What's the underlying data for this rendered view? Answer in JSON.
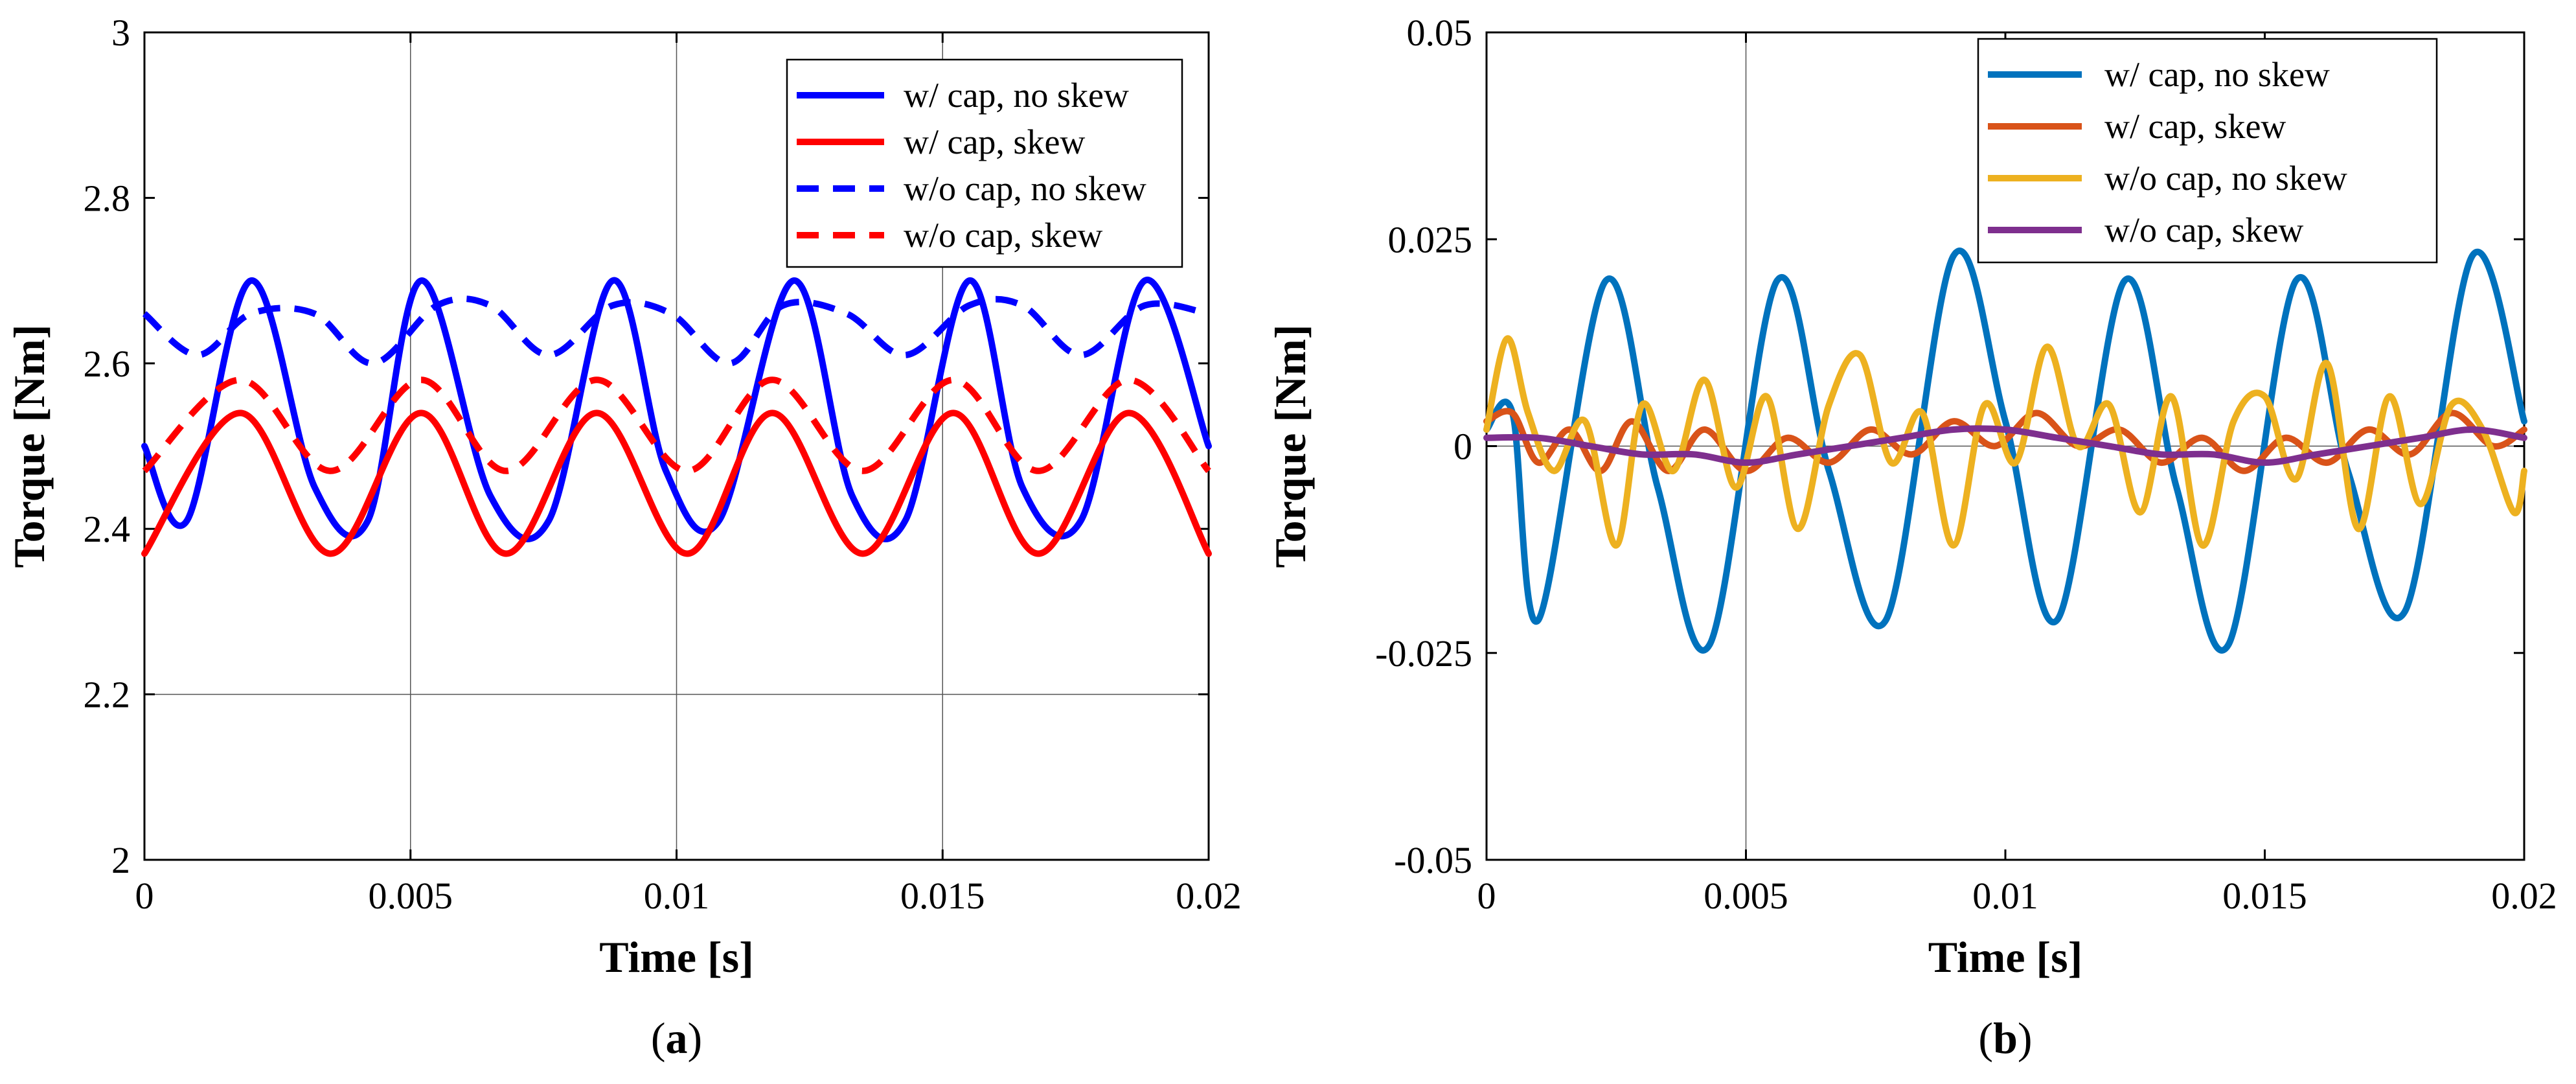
{
  "chart_data": [
    {
      "type": "line",
      "panel_label": "(a)",
      "panel_letter": "a",
      "xlabel": "Time [s]",
      "ylabel": "Torque [Nm]",
      "xlim": [
        0,
        0.02
      ],
      "ylim": [
        2,
        3
      ],
      "xticks": [
        0,
        0.005,
        0.01,
        0.015,
        0.02
      ],
      "xtick_labels": [
        "0",
        "0.005",
        "0.01",
        "0.015",
        "0.02"
      ],
      "yticks": [
        2,
        2.2,
        2.4,
        2.6,
        2.8,
        3
      ],
      "ytick_labels": [
        "2",
        "2.2",
        "2.4",
        "2.6",
        "2.8",
        "3"
      ],
      "legend_position": "top-right",
      "series": [
        {
          "name": "w/ cap, no skew",
          "color": "#0000ff",
          "dash": "solid",
          "x": [
            0,
            0.0008,
            0.002,
            0.0032,
            0.0042,
            0.0052,
            0.0065,
            0.0076,
            0.0088,
            0.0098,
            0.0108,
            0.0122,
            0.0133,
            0.0143,
            0.0155,
            0.0165,
            0.0176,
            0.0188,
            0.02
          ],
          "y": [
            2.5,
            2.41,
            2.7,
            2.45,
            2.41,
            2.7,
            2.44,
            2.41,
            2.7,
            2.47,
            2.41,
            2.7,
            2.44,
            2.41,
            2.7,
            2.45,
            2.41,
            2.7,
            2.5
          ]
        },
        {
          "name": "w/ cap, skew",
          "color": "#ff0000",
          "dash": "solid",
          "x": [
            0,
            0.0018,
            0.0035,
            0.0052,
            0.0068,
            0.0085,
            0.0102,
            0.0118,
            0.0135,
            0.0152,
            0.0168,
            0.0185,
            0.02
          ],
          "y": [
            2.37,
            2.54,
            2.37,
            2.54,
            2.37,
            2.54,
            2.37,
            2.54,
            2.37,
            2.54,
            2.37,
            2.54,
            2.37
          ]
        },
        {
          "name": "w/o cap, no skew",
          "color": "#0000ff",
          "dash": "dashed",
          "x": [
            0,
            0.001,
            0.002,
            0.0032,
            0.0043,
            0.0055,
            0.0065,
            0.0076,
            0.0088,
            0.0099,
            0.011,
            0.012,
            0.0132,
            0.0143,
            0.0155,
            0.0165,
            0.0176,
            0.0188,
            0.02
          ],
          "y": [
            2.66,
            2.61,
            2.66,
            2.66,
            2.6,
            2.67,
            2.67,
            2.61,
            2.67,
            2.66,
            2.6,
            2.67,
            2.66,
            2.61,
            2.67,
            2.67,
            2.61,
            2.67,
            2.66
          ]
        },
        {
          "name": "w/o cap, skew",
          "color": "#ff0000",
          "dash": "dashed",
          "x": [
            0,
            0.0018,
            0.0035,
            0.0052,
            0.0068,
            0.0085,
            0.0102,
            0.0118,
            0.0135,
            0.0152,
            0.0168,
            0.0185,
            0.02
          ],
          "y": [
            2.47,
            2.58,
            2.47,
            2.58,
            2.47,
            2.58,
            2.47,
            2.58,
            2.47,
            2.58,
            2.47,
            2.58,
            2.47
          ]
        }
      ]
    },
    {
      "type": "line",
      "panel_label": "(b)",
      "panel_letter": "b",
      "xlabel": "Time [s]",
      "ylabel": "Torque [Nm]",
      "xlim": [
        0,
        0.02
      ],
      "ylim": [
        -0.05,
        0.05
      ],
      "xticks": [
        0,
        0.005,
        0.01,
        0.015,
        0.02
      ],
      "xtick_labels": [
        "0",
        "0.005",
        "0.01",
        "0.015",
        "0.02"
      ],
      "yticks": [
        -0.05,
        -0.025,
        0,
        0.025,
        0.05
      ],
      "ytick_labels": [
        "-0.05",
        "-0.025",
        "0",
        "0.025",
        "0.05"
      ],
      "legend_position": "top-right",
      "series": [
        {
          "name": "w/ cap, no skew",
          "color": "#0072bd",
          "dash": "solid",
          "x": [
            0,
            0.0005,
            0.001,
            0.0023,
            0.0033,
            0.0043,
            0.0056,
            0.0066,
            0.0077,
            0.009,
            0.01,
            0.011,
            0.0123,
            0.0133,
            0.0143,
            0.0156,
            0.0166,
            0.0177,
            0.019,
            0.02
          ],
          "y": [
            0.002,
            0.004,
            -0.021,
            0.02,
            -0.005,
            -0.024,
            0.02,
            -0.003,
            -0.021,
            0.023,
            0.003,
            -0.021,
            0.02,
            -0.005,
            -0.024,
            0.02,
            -0.003,
            -0.02,
            0.023,
            0.003
          ]
        },
        {
          "name": "w/ cap, skew",
          "color": "#d95319",
          "dash": "solid",
          "x": [
            0,
            0.0005,
            0.001,
            0.0016,
            0.0022,
            0.0028,
            0.0035,
            0.0042,
            0.005,
            0.0058,
            0.0066,
            0.0074,
            0.0082,
            0.009,
            0.0098,
            0.0106,
            0.0114,
            0.0122,
            0.013,
            0.0138,
            0.0146,
            0.0154,
            0.0162,
            0.017,
            0.0178,
            0.0186,
            0.0194,
            0.02
          ],
          "y": [
            0.003,
            0.004,
            -0.002,
            0.002,
            -0.003,
            0.003,
            -0.003,
            0.002,
            -0.003,
            0.001,
            -0.002,
            0.002,
            -0.001,
            0.003,
            0.0,
            0.004,
            0.0,
            0.002,
            -0.002,
            0.001,
            -0.003,
            0.001,
            -0.002,
            0.002,
            -0.001,
            0.004,
            0.0,
            0.002
          ]
        },
        {
          "name": "w/o cap, no skew",
          "color": "#edb120",
          "dash": "solid",
          "x": [
            0,
            0.0004,
            0.0008,
            0.0013,
            0.0019,
            0.0025,
            0.003,
            0.0036,
            0.0042,
            0.0048,
            0.0054,
            0.006,
            0.0066,
            0.0072,
            0.0078,
            0.0084,
            0.009,
            0.0096,
            0.0102,
            0.0108,
            0.0114,
            0.012,
            0.0126,
            0.0132,
            0.0138,
            0.0144,
            0.015,
            0.0156,
            0.0162,
            0.0168,
            0.0174,
            0.018,
            0.0186,
            0.0192,
            0.0198,
            0.02
          ],
          "y": [
            0.002,
            0.013,
            0.004,
            -0.003,
            0.003,
            -0.012,
            0.005,
            -0.003,
            0.008,
            -0.005,
            0.006,
            -0.01,
            0.005,
            0.011,
            -0.002,
            0.004,
            -0.012,
            0.005,
            -0.002,
            0.012,
            0.0,
            0.005,
            -0.008,
            0.006,
            -0.012,
            0.003,
            0.006,
            -0.004,
            0.01,
            -0.01,
            0.006,
            -0.007,
            0.005,
            0.002,
            -0.008,
            -0.003
          ]
        },
        {
          "name": "w/o cap, skew",
          "color": "#7e2f8e",
          "dash": "solid",
          "x": [
            0,
            0.001,
            0.002,
            0.003,
            0.004,
            0.005,
            0.006,
            0.007,
            0.008,
            0.009,
            0.01,
            0.011,
            0.012,
            0.013,
            0.014,
            0.015,
            0.016,
            0.017,
            0.018,
            0.019,
            0.02
          ],
          "y": [
            0.001,
            0.001,
            0.0,
            -0.001,
            -0.001,
            -0.002,
            -0.001,
            0.0,
            0.001,
            0.002,
            0.002,
            0.001,
            0.0,
            -0.001,
            -0.001,
            -0.002,
            -0.001,
            0.0,
            0.001,
            0.002,
            0.001
          ]
        }
      ]
    }
  ]
}
